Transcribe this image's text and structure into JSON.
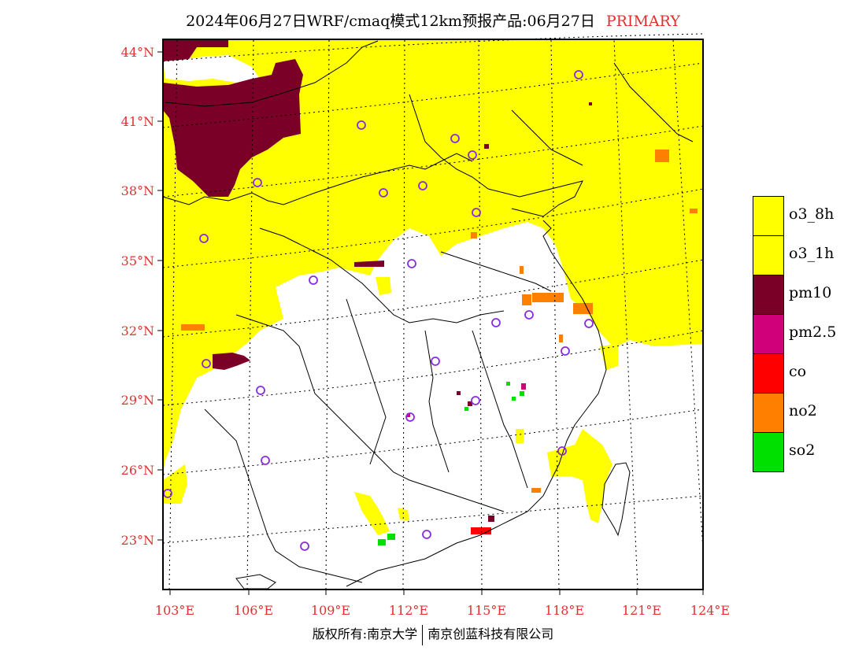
{
  "header": {
    "title": "2024年06月27日WRF/cmaq模式12km预报产品:06月27日",
    "tag": "PRIMARY"
  },
  "axes": {
    "lat_labels": [
      "44°N",
      "41°N",
      "38°N",
      "35°N",
      "32°N",
      "29°N",
      "26°N",
      "23°N"
    ],
    "lon_labels": [
      "103°E",
      "106°E",
      "109°E",
      "112°E",
      "115°E",
      "118°E",
      "121°E",
      "124°E"
    ]
  },
  "legend": {
    "items": [
      {
        "label": "o3_8h",
        "color": "#ffff00"
      },
      {
        "label": "o3_1h",
        "color": "#ffff00"
      },
      {
        "label": "pm10",
        "color": "#7a0028"
      },
      {
        "label": "pm2.5",
        "color": "#d0007a"
      },
      {
        "label": "co",
        "color": "#ff0000"
      },
      {
        "label": "no2",
        "color": "#ff7f00"
      },
      {
        "label": "so2",
        "color": "#00e000"
      }
    ]
  },
  "footer": {
    "left": "版权所有:南京大学",
    "right": "南京创蓝科技有限公司"
  },
  "colors": {
    "o3": "#ffff00",
    "pm10": "#7a0028",
    "pm25": "#d0007a",
    "co": "#ff0000",
    "no2": "#ff7f00",
    "so2": "#00e000",
    "station": "#8a2be2",
    "axis_label": "#e03030"
  }
}
